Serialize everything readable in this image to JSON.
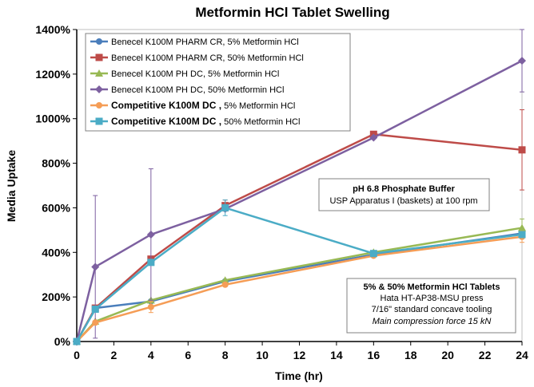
{
  "chart_data": {
    "type": "line",
    "title": "Metformin HCl Tablet Swelling",
    "xlabel": "Time (hr)",
    "ylabel": "Media Uptake",
    "xlim": [
      0,
      24
    ],
    "ylim": [
      0,
      1400
    ],
    "xticks": [
      "0",
      "2",
      "4",
      "6",
      "8",
      "10",
      "12",
      "14",
      "16",
      "18",
      "20",
      "22",
      "24"
    ],
    "yticks": [
      "0%",
      "200%",
      "400%",
      "600%",
      "800%",
      "1000%",
      "1200%",
      "1400%"
    ],
    "series": [
      {
        "name": "Benecel K100M PHARM CR, 5% Metformin HCl",
        "color": "#4a7ebb",
        "marker": "circle",
        "x": [
          0,
          1,
          4,
          8,
          16,
          24
        ],
        "y": [
          0,
          150,
          180,
          270,
          390,
          485
        ],
        "err": [
          0,
          0,
          0,
          0,
          0,
          0
        ]
      },
      {
        "name": "Benecel K100M PHARM CR, 50% Metformin HCl",
        "color": "#be4b48",
        "marker": "square",
        "x": [
          0,
          1,
          4,
          8,
          16,
          24
        ],
        "y": [
          0,
          150,
          370,
          610,
          930,
          860
        ],
        "err": [
          0,
          0,
          0,
          25,
          0,
          180
        ]
      },
      {
        "name": "Benecel K100M PH DC, 5% Metformin HCl",
        "color": "#98b954",
        "marker": "triangle",
        "x": [
          0,
          1,
          4,
          8,
          16,
          24
        ],
        "y": [
          0,
          90,
          185,
          275,
          400,
          510
        ],
        "err": [
          0,
          0,
          0,
          0,
          0,
          40
        ]
      },
      {
        "name": "Benecel K100M PH DC, 50% Metformin HCl",
        "color": "#7d60a0",
        "marker": "diamond",
        "x": [
          0,
          1,
          4,
          8,
          16,
          24
        ],
        "y": [
          0,
          335,
          480,
          595,
          915,
          1260
        ],
        "err": [
          0,
          320,
          295,
          0,
          0,
          140
        ]
      },
      {
        "name": "Competitive  K100M  DC , 5% Metformin HCl",
        "color": "#f59d56",
        "marker": "circle",
        "x": [
          0,
          1,
          4,
          8,
          16,
          24
        ],
        "y": [
          0,
          85,
          155,
          255,
          385,
          470
        ],
        "err": [
          0,
          0,
          25,
          0,
          0,
          25
        ]
      },
      {
        "name": "Competitive  K100M  DC , 50% Metformin HCl",
        "color": "#4bacc6",
        "marker": "square",
        "x": [
          0,
          1,
          4,
          8,
          16,
          24
        ],
        "y": [
          0,
          145,
          355,
          600,
          395,
          480
        ],
        "err": [
          0,
          0,
          0,
          35,
          0,
          0
        ]
      }
    ],
    "legend_prefixes": [
      "Benecel K100M PHARM CR,",
      "Benecel K100M PHARM CR,",
      "Benecel K100M PH DC,",
      "Benecel K100M PH DC,",
      "Competitive  K100M  DC ,",
      "Competitive  K100M  DC ,"
    ],
    "legend_suffixes": [
      " 5% Metformin HCl",
      " 50% Metformin HCl",
      " 5% Metformin HCl",
      " 50% Metformin HCl",
      " 5% Metformin HCl",
      " 50% Metformin HCl"
    ],
    "legend_position": "top-left",
    "annotations": {
      "buffer_title": "pH 6.8 Phosphate Buffer",
      "buffer_sub": "USP Apparatus I (baskets) at 100 rpm",
      "tablet_title": "5% & 50% Metformin HCl Tablets",
      "tablet_line1": "Hata HT-AP38-MSU press",
      "tablet_line2": "7/16\" standard concave tooling",
      "tablet_line3": "Main compression force 15 kN"
    }
  }
}
